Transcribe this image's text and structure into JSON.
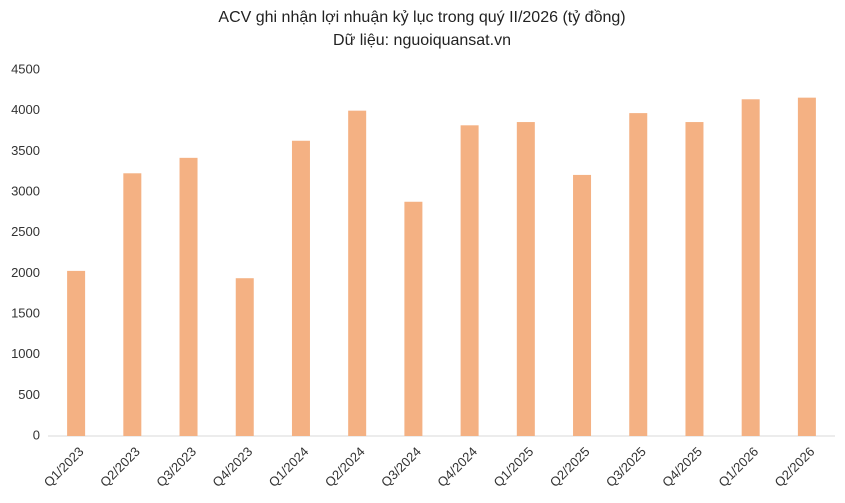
{
  "chart_data": {
    "type": "bar",
    "title": "ACV ghi nhận lợi nhuận kỷ lục trong quý II/2026 (tỷ đồng)",
    "subtitle": "Dữ liệu: nguoiquansat.vn",
    "categories": [
      "Q1/2023",
      "Q2/2023",
      "Q3/2023",
      "Q4/2023",
      "Q1/2024",
      "Q2/2024",
      "Q3/2024",
      "Q4/2024",
      "Q1/2025",
      "Q2/2025",
      "Q3/2025",
      "Q4/2025",
      "Q1/2026",
      "Q2/2026"
    ],
    "values": [
      2030,
      3230,
      3420,
      1940,
      3630,
      4000,
      2880,
      3820,
      3860,
      3210,
      3970,
      3860,
      4140,
      4160
    ],
    "color": "#f4b183",
    "ylim": [
      0,
      4500
    ],
    "yticks": [
      0,
      500,
      1000,
      1500,
      2000,
      2500,
      3000,
      3500,
      4000,
      4500
    ],
    "grid": false
  }
}
